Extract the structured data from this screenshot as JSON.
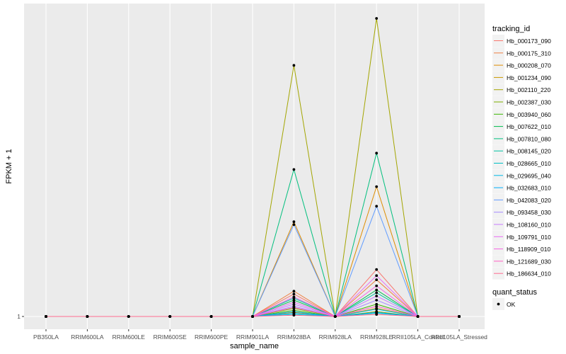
{
  "chart_data": {
    "type": "line",
    "xlabel": "sample_name",
    "ylabel": "FPKM + 1",
    "categories": [
      "PB350LA",
      "RRIM600LA",
      "RRIM600LE",
      "RRIM600SE",
      "RRIM600PE",
      "RRIM901LA",
      "RRIM928BA",
      "RRIM928LA",
      "RRIM928LE",
      "RRII105LA_Control",
      "RRII105LA_Stressed"
    ],
    "yticks": [
      "1"
    ],
    "ylim": [
      0,
      74
    ],
    "grid": true,
    "legend": {
      "title": "tracking_id",
      "position": "right"
    },
    "legend2": {
      "title": "quant_status",
      "entries": [
        "OK"
      ]
    },
    "series": [
      {
        "name": "Hb_000173_090",
        "color": "#F8766D",
        "values": [
          1,
          1,
          1,
          1,
          1,
          1,
          6.5,
          1,
          12.5,
          1,
          1
        ]
      },
      {
        "name": "Hb_000175_310",
        "color": "#EE8043",
        "values": [
          1,
          1,
          1,
          1,
          1,
          1,
          7.2,
          1,
          10.0,
          1,
          1
        ]
      },
      {
        "name": "Hb_000208_070",
        "color": "#DE8C00",
        "values": [
          1,
          1,
          1,
          1,
          1,
          1,
          24.2,
          1,
          32.8,
          1,
          1
        ]
      },
      {
        "name": "Hb_001234_090",
        "color": "#C99800",
        "values": [
          1,
          1,
          1,
          1,
          1,
          1,
          2.0,
          1,
          3.0,
          1,
          1
        ]
      },
      {
        "name": "Hb_002110_220",
        "color": "#A3A500",
        "values": [
          1,
          1,
          1,
          1,
          1,
          1,
          62.5,
          1,
          74.0,
          1,
          1
        ]
      },
      {
        "name": "Hb_002387_030",
        "color": "#7CAE00",
        "values": [
          1,
          1,
          1,
          1,
          1,
          1,
          3.0,
          1,
          2.2,
          1,
          1
        ]
      },
      {
        "name": "Hb_003940_060",
        "color": "#39B600",
        "values": [
          1,
          1,
          1,
          1,
          1,
          1,
          2.5,
          1,
          4.0,
          1,
          1
        ]
      },
      {
        "name": "Hb_007622_010",
        "color": "#00BB4E",
        "values": [
          1,
          1,
          1,
          1,
          1,
          1,
          5.0,
          1,
          7.5,
          1,
          1
        ]
      },
      {
        "name": "Hb_007810_080",
        "color": "#00BF7D",
        "values": [
          1,
          1,
          1,
          1,
          1,
          1,
          37.0,
          1,
          41.0,
          1,
          1
        ]
      },
      {
        "name": "Hb_008145_020",
        "color": "#00C1A3",
        "values": [
          1,
          1,
          1,
          1,
          1,
          1,
          5.5,
          1,
          6.8,
          1,
          1
        ]
      },
      {
        "name": "Hb_028665_010",
        "color": "#00BFC4",
        "values": [
          1,
          1,
          1,
          1,
          1,
          1,
          1.5,
          1,
          1.8,
          1,
          1
        ]
      },
      {
        "name": "Hb_029695_040",
        "color": "#00B8E5",
        "values": [
          1,
          1,
          1,
          1,
          1,
          1,
          2.2,
          1,
          2.8,
          1,
          1
        ]
      },
      {
        "name": "Hb_032683_010",
        "color": "#00ADFA",
        "values": [
          1,
          1,
          1,
          1,
          1,
          1,
          1.8,
          1,
          2.0,
          1,
          1
        ]
      },
      {
        "name": "Hb_042083_020",
        "color": "#619CFF",
        "values": [
          1,
          1,
          1,
          1,
          1,
          1,
          23.5,
          1,
          28.0,
          1,
          1
        ]
      },
      {
        "name": "Hb_093458_030",
        "color": "#A58AFF",
        "values": [
          1,
          1,
          1,
          1,
          1,
          1,
          3.5,
          1,
          5.0,
          1,
          1
        ]
      },
      {
        "name": "Hb_108160_010",
        "color": "#C77CFF",
        "values": [
          1,
          1,
          1,
          1,
          1,
          1,
          4.0,
          1,
          6.0,
          1,
          1
        ]
      },
      {
        "name": "Hb_109791_010",
        "color": "#E76BF3",
        "values": [
          1,
          1,
          1,
          1,
          1,
          1,
          4.5,
          1,
          11.0,
          1,
          1
        ]
      },
      {
        "name": "Hb_118909_010",
        "color": "#F564E3",
        "values": [
          1,
          1,
          1,
          1,
          1,
          1,
          5.8,
          1,
          8.5,
          1,
          1
        ]
      },
      {
        "name": "Hb_121689_030",
        "color": "#FF61C3",
        "values": [
          1,
          1,
          1,
          1,
          1,
          1,
          3.2,
          1,
          3.5,
          1,
          1
        ]
      },
      {
        "name": "Hb_186634_010",
        "color": "#FF6C91",
        "values": [
          1,
          1,
          1,
          1,
          1,
          1,
          1.3,
          1,
          1.5,
          1,
          1
        ]
      }
    ]
  }
}
